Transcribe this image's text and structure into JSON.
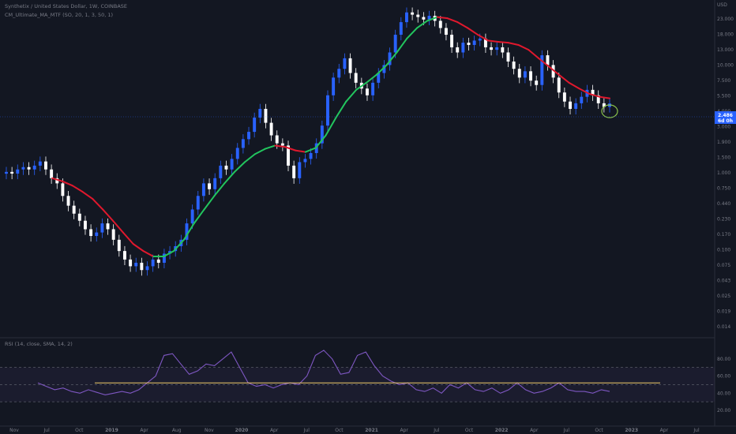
{
  "header": {
    "symbol_line": "Synthetix / United States Dollar, 1W, COINBASE",
    "indicator_line": "CM_Ultimate_MA_MTF (SO, 20, 1, 3, 50, 1)",
    "rsi_line": "RSI (14, close, SMA, 14, 2)"
  },
  "price_axis": {
    "currency": "USD",
    "ticks": [
      "23.000",
      "18.000",
      "13.000",
      "10.000",
      "7.500",
      "5.500",
      "4.000",
      "3.000",
      "1.900",
      "1.500",
      "1.000",
      "0.750",
      "0.440",
      "0.230",
      "0.170",
      "0.100",
      "0.075",
      "0.043",
      "0.025",
      "0.019",
      "0.014"
    ],
    "last_price": "2.486",
    "countdown": "6d 0h"
  },
  "rsi_axis": {
    "ticks": [
      "80.00",
      "60.00",
      "40.00",
      "20.00"
    ]
  },
  "time_axis": {
    "ticks": [
      "Nov",
      "Jul",
      "Oct",
      "2019",
      "Apr",
      "Aug",
      "Nov",
      "2020",
      "Apr",
      "Jul",
      "Oct",
      "2021",
      "Apr",
      "Jul",
      "Oct",
      "2022",
      "Apr",
      "Jul",
      "Oct",
      "2023",
      "Apr",
      "Jul"
    ]
  },
  "colors": {
    "background": "#131722",
    "candle_up": "#2962ff",
    "candle_down": "#ffffff",
    "ma_up": "#22c55e",
    "ma_down": "#e0182d",
    "rsi_line": "#7e57c2",
    "rsi_band": "#7e57c2",
    "trendline": "#f2cd6b",
    "marker_circle": "#8bc34a",
    "price_line": "#2962ff"
  },
  "chart_data": {
    "type": "candlestick",
    "series": [
      {
        "name": "SNX/USD",
        "kind": "weekly close (USD)",
        "values": [
          0.52,
          0.5,
          0.55,
          0.58,
          0.55,
          0.6,
          0.66,
          0.55,
          0.45,
          0.4,
          0.3,
          0.24,
          0.2,
          0.17,
          0.14,
          0.12,
          0.13,
          0.16,
          0.14,
          0.11,
          0.085,
          0.07,
          0.06,
          0.065,
          0.055,
          0.06,
          0.07,
          0.065,
          0.08,
          0.085,
          0.095,
          0.11,
          0.16,
          0.22,
          0.3,
          0.4,
          0.35,
          0.45,
          0.6,
          0.55,
          0.7,
          0.9,
          1.1,
          1.3,
          1.8,
          2.2,
          1.6,
          1.2,
          1.0,
          0.95,
          0.6,
          0.45,
          0.65,
          0.7,
          0.8,
          1.0,
          1.5,
          3.0,
          4.5,
          5.5,
          7.0,
          5.0,
          4.0,
          3.5,
          3.0,
          4.0,
          5.0,
          6.0,
          8.0,
          12.0,
          16.0,
          20.0,
          19.0,
          18.0,
          17.0,
          18.5,
          16.5,
          14.0,
          12.0,
          9.0,
          8.0,
          10.0,
          9.5,
          10.5,
          11.0,
          9.0,
          8.5,
          9.0,
          8.0,
          6.5,
          5.5,
          4.5,
          5.2,
          4.2,
          3.8,
          7.5,
          6.0,
          4.5,
          3.2,
          2.6,
          2.2,
          2.5,
          2.9,
          3.4,
          3.0,
          2.5,
          2.3,
          2.486
        ]
      },
      {
        "name": "CM_Ultimate_MA_MTF",
        "kind": "moving average",
        "values": [
          0.45,
          0.42,
          0.38,
          0.33,
          0.28,
          0.22,
          0.17,
          0.13,
          0.1,
          0.085,
          0.075,
          0.075,
          0.085,
          0.11,
          0.16,
          0.22,
          0.3,
          0.4,
          0.52,
          0.65,
          0.78,
          0.88,
          0.95,
          0.92,
          0.85,
          0.82,
          0.9,
          1.2,
          1.8,
          2.6,
          3.4,
          4.0,
          4.8,
          6.0,
          8.0,
          11.0,
          14.0,
          16.5,
          18.0,
          17.5,
          16.0,
          14.0,
          12.0,
          10.5,
          10.2,
          10.0,
          9.5,
          8.5,
          7.0,
          5.8,
          4.8,
          4.0,
          3.5,
          3.1,
          2.9,
          2.8
        ]
      },
      {
        "name": "RSI",
        "kind": "oscillator (0-100)",
        "values": [
          52,
          48,
          44,
          46,
          42,
          40,
          44,
          41,
          38,
          40,
          42,
          40,
          44,
          52,
          60,
          84,
          86,
          74,
          62,
          66,
          74,
          72,
          80,
          88,
          70,
          52,
          48,
          50,
          46,
          50,
          52,
          50,
          60,
          84,
          90,
          80,
          62,
          64,
          84,
          88,
          72,
          60,
          54,
          50,
          52,
          44,
          42,
          46,
          40,
          50,
          46,
          52,
          44,
          42,
          46,
          40,
          44,
          52,
          44,
          40,
          42,
          46,
          52,
          44,
          42,
          42,
          40,
          44,
          42
        ]
      }
    ],
    "y_scale": "log",
    "ylim": [
      0.014,
      23
    ],
    "rsi_ylim": [
      20,
      100
    ],
    "rsi_band": [
      30,
      70
    ],
    "annotations": [
      "horizontal trendline on RSI",
      "circle marker near last candle"
    ]
  }
}
